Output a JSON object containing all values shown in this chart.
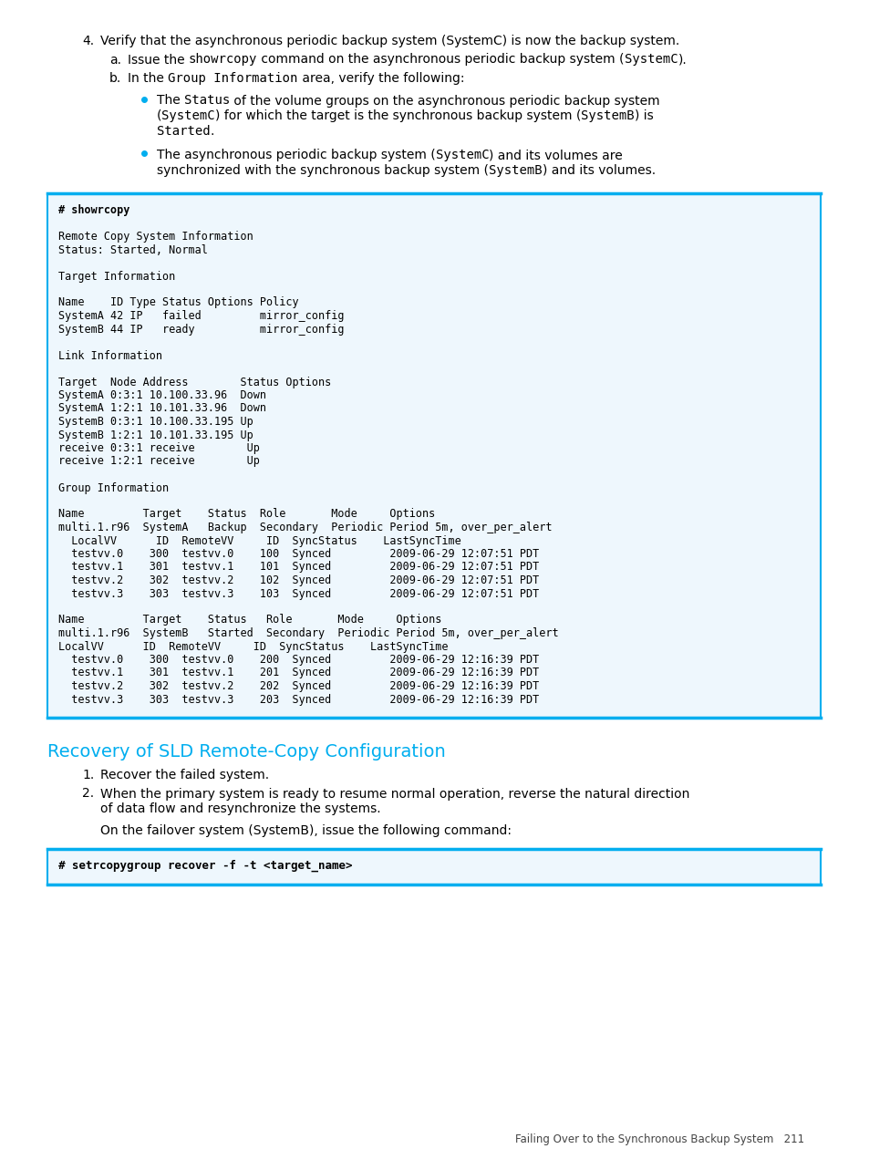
{
  "page_bg": "#ffffff",
  "cyan_color": "#00aeef",
  "heading_color": "#00aeef",
  "section_heading": "Recovery of SLD Remote-Copy Configuration",
  "footer_text": "Failing Over to the Synchronous Backup System   211",
  "code1_bold_line": "# showrcopy",
  "code2_bold_line": "# setrcopygroup recover -f -t <target_name>",
  "code_block1": [
    "# showrcopy",
    "",
    "Remote Copy System Information",
    "Status: Started, Normal",
    "",
    "Target Information",
    "",
    "Name    ID Type Status Options Policy",
    "SystemA 42 IP   failed         mirror_config",
    "SystemB 44 IP   ready          mirror_config",
    "",
    "Link Information",
    "",
    "Target  Node Address        Status Options",
    "SystemA 0:3:1 10.100.33.96  Down",
    "SystemA 1:2:1 10.101.33.96  Down",
    "SystemB 0:3:1 10.100.33.195 Up",
    "SystemB 1:2:1 10.101.33.195 Up",
    "receive 0:3:1 receive        Up",
    "receive 1:2:1 receive        Up",
    "",
    "Group Information",
    "",
    "Name         Target    Status  Role       Mode     Options",
    "multi.1.r96  SystemA   Backup  Secondary  Periodic Period 5m, over_per_alert",
    "  LocalVV      ID  RemoteVV     ID  SyncStatus    LastSyncTime",
    "  testvv.0    300  testvv.0    100  Synced         2009-06-29 12:07:51 PDT",
    "  testvv.1    301  testvv.1    101  Synced         2009-06-29 12:07:51 PDT",
    "  testvv.2    302  testvv.2    102  Synced         2009-06-29 12:07:51 PDT",
    "  testvv.3    303  testvv.3    103  Synced         2009-06-29 12:07:51 PDT",
    "",
    "Name         Target    Status   Role       Mode     Options",
    "multi.1.r96  SystemB   Started  Secondary  Periodic Period 5m, over_per_alert",
    "LocalVV      ID  RemoteVV     ID  SyncStatus    LastSyncTime",
    "  testvv.0    300  testvv.0    200  Synced         2009-06-29 12:16:39 PDT",
    "  testvv.1    301  testvv.1    201  Synced         2009-06-29 12:16:39 PDT",
    "  testvv.2    302  testvv.2    202  Synced         2009-06-29 12:16:39 PDT",
    "  testvv.3    303  testvv.3    203  Synced         2009-06-29 12:16:39 PDT"
  ],
  "code_block2": [
    "# setrcopygroup recover -f -t <target_name>"
  ]
}
